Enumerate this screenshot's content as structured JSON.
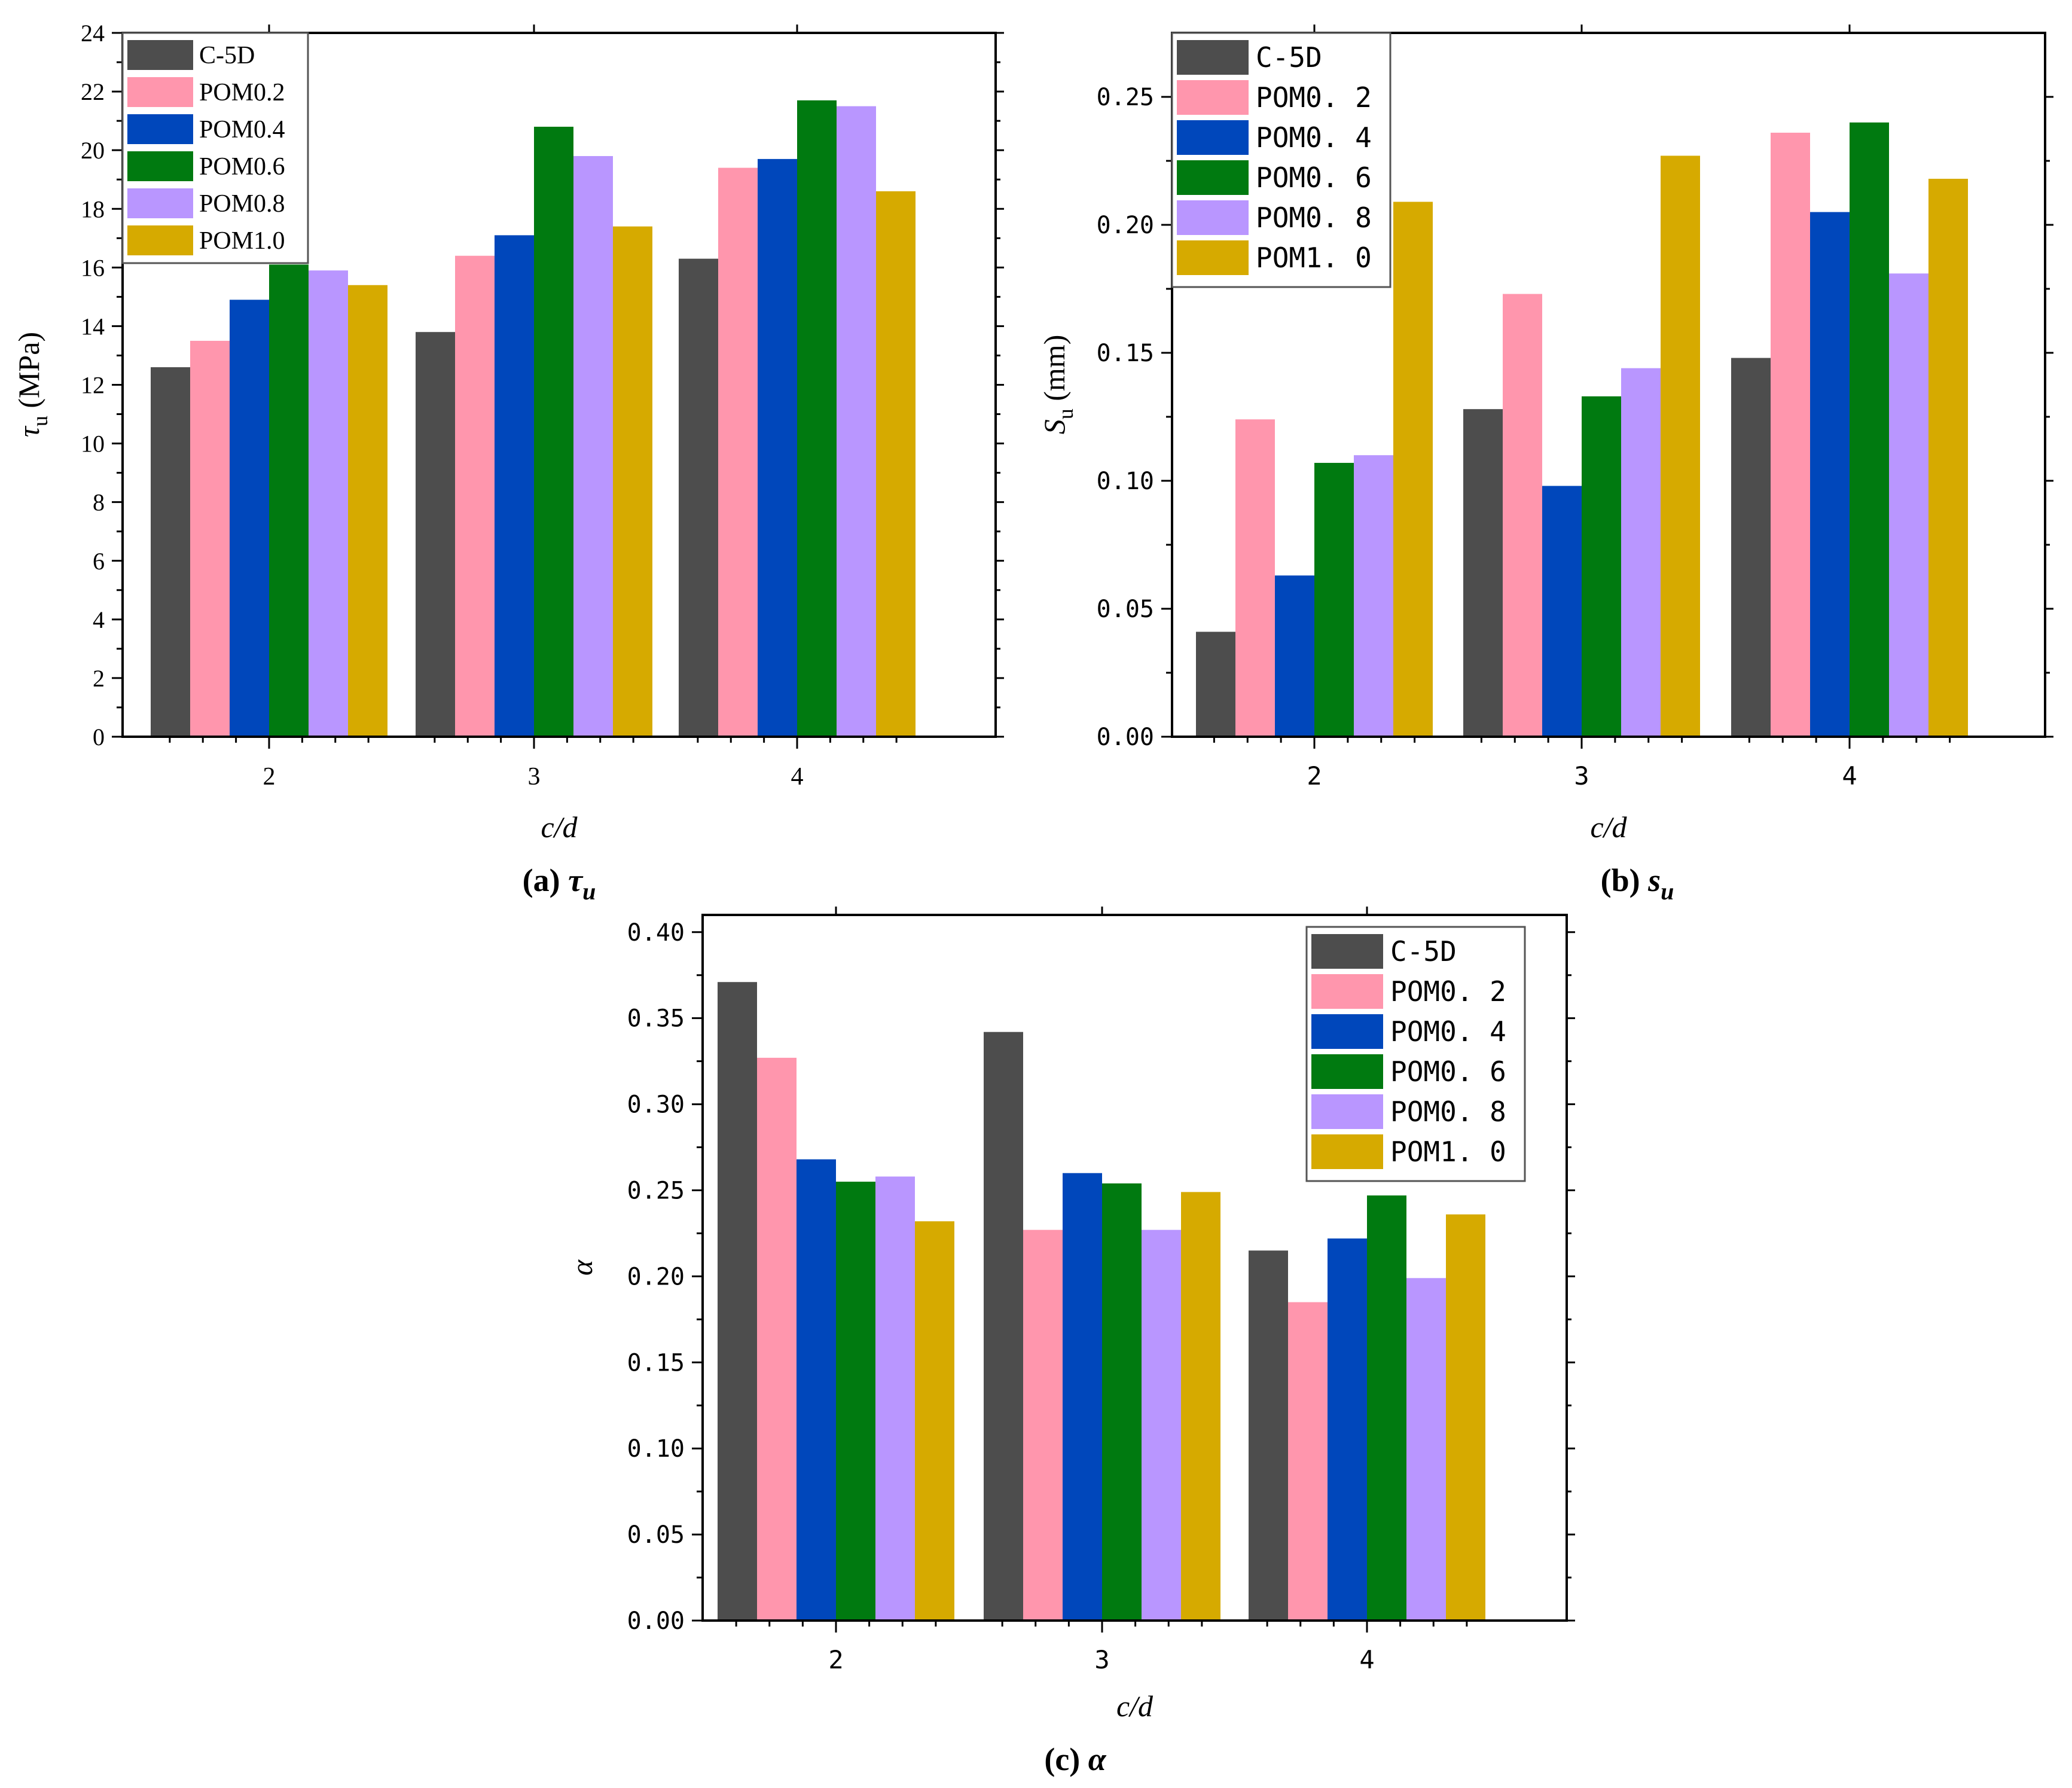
{
  "colors": {
    "C-5D": "#4d4d4d",
    "POM0.2": "#ff96ad",
    "POM0.4": "#0047bb",
    "POM0.6": "#007a10",
    "POM0.8": "#b996ff",
    "POM1.0": "#d6aa00"
  },
  "chart_data": [
    {
      "id": "a",
      "type": "bar",
      "caption_prefix": "(a) ",
      "caption_symbol": "τ",
      "caption_sub": "u",
      "categories": [
        "2",
        "3",
        "4"
      ],
      "xlabel": "c/d",
      "ylabel_symbol": "τ",
      "ylabel_sub": "u",
      "ylabel_unit": " (MPa)",
      "ylim": [
        0,
        24
      ],
      "yticks": [
        "0",
        "2",
        "4",
        "6",
        "8",
        "10",
        "12",
        "14",
        "16",
        "18",
        "20",
        "22",
        "24"
      ],
      "legend_font": "serif",
      "legend_labels": [
        "C-5D",
        "POM0.2",
        "POM0.4",
        "POM0.6",
        "POM0.8",
        "POM1.0"
      ],
      "series": [
        {
          "name": "C-5D",
          "values": [
            12.6,
            13.8,
            16.3
          ]
        },
        {
          "name": "POM0.2",
          "values": [
            13.5,
            16.4,
            19.4
          ]
        },
        {
          "name": "POM0.4",
          "values": [
            14.9,
            17.1,
            19.7
          ]
        },
        {
          "name": "POM0.6",
          "values": [
            16.1,
            20.8,
            21.7
          ]
        },
        {
          "name": "POM0.8",
          "values": [
            15.9,
            19.8,
            21.5
          ]
        },
        {
          "name": "POM1.0",
          "values": [
            15.4,
            17.4,
            18.6
          ]
        }
      ]
    },
    {
      "id": "b",
      "type": "bar",
      "caption_prefix": "(b) ",
      "caption_symbol": "s",
      "caption_sub": "u",
      "categories": [
        "2",
        "3",
        "4"
      ],
      "xlabel": "c/d",
      "ylabel_symbol": "S",
      "ylabel_sub": "u",
      "ylabel_unit": " (mm)",
      "ylim": [
        0,
        0.275
      ],
      "yticks": [
        "0.00",
        "0.05",
        "0.10",
        "0.15",
        "0.20",
        "0.25"
      ],
      "legend_font": "mono",
      "legend_labels": [
        "C-5D",
        "POM0. 2",
        "POM0. 4",
        "POM0. 6",
        "POM0. 8",
        "POM1. 0"
      ],
      "series": [
        {
          "name": "C-5D",
          "values": [
            0.041,
            0.128,
            0.148
          ]
        },
        {
          "name": "POM0.2",
          "values": [
            0.124,
            0.173,
            0.236
          ]
        },
        {
          "name": "POM0.4",
          "values": [
            0.063,
            0.098,
            0.205
          ]
        },
        {
          "name": "POM0.6",
          "values": [
            0.107,
            0.133,
            0.24
          ]
        },
        {
          "name": "POM0.8",
          "values": [
            0.11,
            0.144,
            0.181
          ]
        },
        {
          "name": "POM1.0",
          "values": [
            0.209,
            0.227,
            0.218
          ]
        }
      ]
    },
    {
      "id": "c",
      "type": "bar",
      "caption_prefix": "(c) ",
      "caption_symbol": "α",
      "caption_sub": "",
      "categories": [
        "2",
        "3",
        "4"
      ],
      "xlabel": "c/d",
      "ylabel_symbol": "α",
      "ylabel_sub": "",
      "ylabel_unit": "",
      "ylim": [
        0,
        0.41
      ],
      "yticks": [
        "0.00",
        "0.05",
        "0.10",
        "0.15",
        "0.20",
        "0.25",
        "0.30",
        "0.35",
        "0.40"
      ],
      "legend_font": "mono",
      "legend_labels": [
        "C-5D",
        "POM0. 2",
        "POM0. 4",
        "POM0. 6",
        "POM0. 8",
        "POM1. 0"
      ],
      "series": [
        {
          "name": "C-5D",
          "values": [
            0.371,
            0.342,
            0.215
          ]
        },
        {
          "name": "POM0.2",
          "values": [
            0.327,
            0.227,
            0.185
          ]
        },
        {
          "name": "POM0.4",
          "values": [
            0.268,
            0.26,
            0.222
          ]
        },
        {
          "name": "POM0.6",
          "values": [
            0.255,
            0.254,
            0.247
          ]
        },
        {
          "name": "POM0.8",
          "values": [
            0.258,
            0.227,
            0.199
          ]
        },
        {
          "name": "POM1.0",
          "values": [
            0.232,
            0.249,
            0.236
          ]
        }
      ]
    }
  ]
}
